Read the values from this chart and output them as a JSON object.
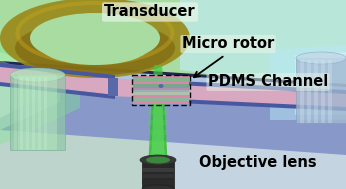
{
  "labels": {
    "transducer": "Transducer",
    "micro_rotor": "Micro rotor",
    "pdms_channel": "PDMS Channel",
    "objective_lens": "Objective lens"
  },
  "colors": {
    "bg_top_left": "#a8dca8",
    "bg_top_right": "#c0e8f0",
    "bg_bottom": "#c8d8e8",
    "platform_main": "#8090c0",
    "platform_light": "#a8c0d8",
    "platform_dark_line": "#1a2060",
    "channel_pink": "#d8a8c0",
    "channel_wall": "#5060a0",
    "transducer_ring": "#8a7a1a",
    "transducer_ring_light": "#b09828",
    "left_glow_outer": "#90e890",
    "left_glow_inner": "#d0f8d0",
    "left_cyl": "#80c8a0",
    "right_glow": "#c0e8f8",
    "right_cyl": "#a0b8d0",
    "green_beam": "#40c040",
    "green_beam_light": "#80e080",
    "obj_dark": "#303030",
    "obj_mid": "#404848",
    "rotor_pink": "#d880a0",
    "rotor_green": "#60c080",
    "rotor_blue": "#8090c0",
    "text_color": "#000000",
    "dashed_box": "#101010"
  },
  "label_fontsize": 10.5,
  "label_fontweight": "bold"
}
